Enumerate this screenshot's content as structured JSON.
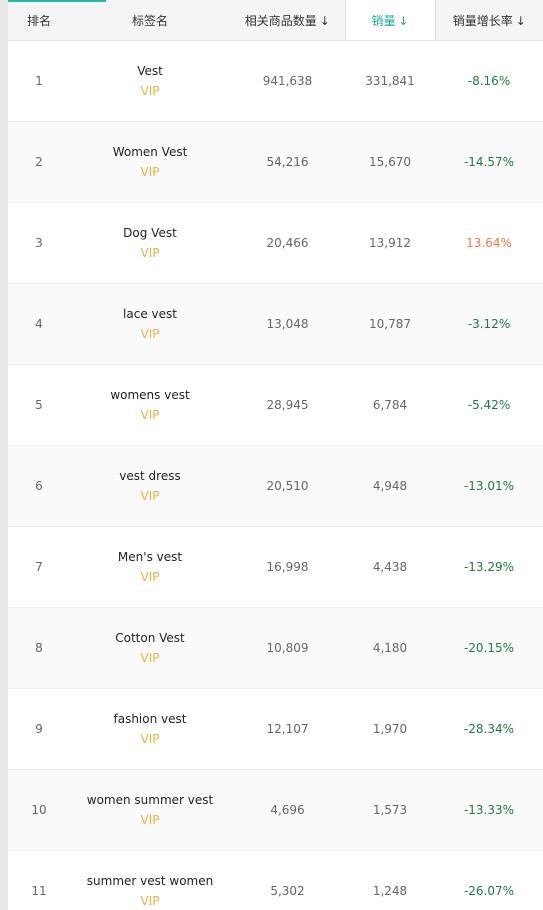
{
  "header": {
    "rank": "排名",
    "tag": "标签名",
    "products": "相关商品数量",
    "sales": "销量",
    "growth": "销量增长率",
    "sort_icon": "↓"
  },
  "colors": {
    "accent": "#21b9a5",
    "active_header": "#1aa99a",
    "vip": "#e8b43c",
    "negative_rate": "#1a7f3c",
    "positive_rate": "#f07a3e"
  },
  "rows": [
    {
      "rank": "1",
      "tag": "Vest",
      "badge": "VIP",
      "products": "941,638",
      "sales": "331,841",
      "growth": "-8.16%"
    },
    {
      "rank": "2",
      "tag": "Women Vest",
      "badge": "VIP",
      "products": "54,216",
      "sales": "15,670",
      "growth": "-14.57%"
    },
    {
      "rank": "3",
      "tag": "Dog Vest",
      "badge": "VIP",
      "products": "20,466",
      "sales": "13,912",
      "growth": "13.64%"
    },
    {
      "rank": "4",
      "tag": "lace vest",
      "badge": "VIP",
      "products": "13,048",
      "sales": "10,787",
      "growth": "-3.12%"
    },
    {
      "rank": "5",
      "tag": "womens vest",
      "badge": "VIP",
      "products": "28,945",
      "sales": "6,784",
      "growth": "-5.42%"
    },
    {
      "rank": "6",
      "tag": "vest dress",
      "badge": "VIP",
      "products": "20,510",
      "sales": "4,948",
      "growth": "-13.01%"
    },
    {
      "rank": "7",
      "tag": "Men's vest",
      "badge": "VIP",
      "products": "16,998",
      "sales": "4,438",
      "growth": "-13.29%"
    },
    {
      "rank": "8",
      "tag": "Cotton Vest",
      "badge": "VIP",
      "products": "10,809",
      "sales": "4,180",
      "growth": "-20.15%"
    },
    {
      "rank": "9",
      "tag": "fashion vest",
      "badge": "VIP",
      "products": "12,107",
      "sales": "1,970",
      "growth": "-28.34%"
    },
    {
      "rank": "10",
      "tag": "women summer vest",
      "badge": "VIP",
      "products": "4,696",
      "sales": "1,573",
      "growth": "-13.33%"
    },
    {
      "rank": "11",
      "tag": "summer vest women",
      "badge": "VIP",
      "products": "5,302",
      "sales": "1,248",
      "growth": "-26.07%"
    }
  ]
}
